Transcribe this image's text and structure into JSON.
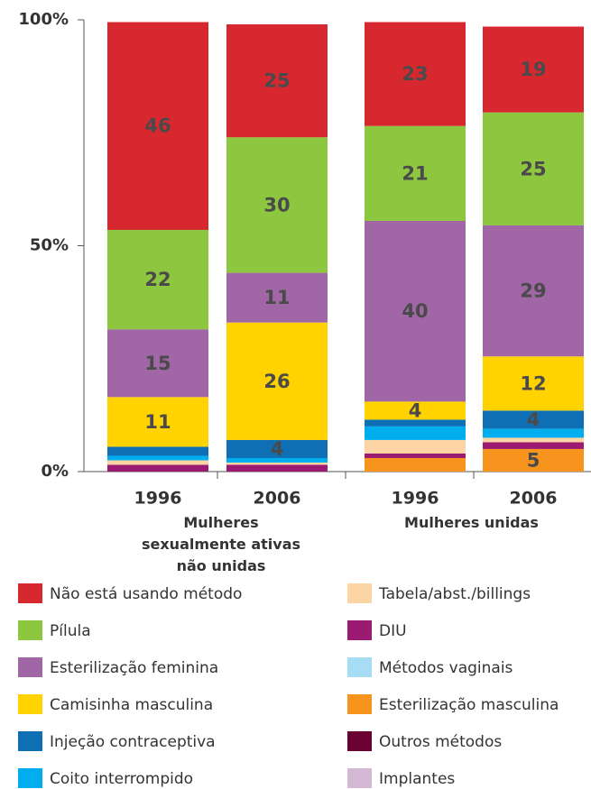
{
  "chart_data": {
    "type": "stacked_bar",
    "categories": [
      "1996",
      "2006",
      "1996",
      "2006"
    ],
    "groups": [
      "Mulheres sexualmente ativas não unidas",
      "Mulheres unidas"
    ],
    "ylim": [
      0,
      100
    ],
    "yticks": [
      {
        "value": 0,
        "label": "0%"
      },
      {
        "value": 50,
        "label": "50%"
      },
      {
        "value": 100,
        "label": "100%"
      }
    ],
    "series": [
      {
        "name": "Não está usando método",
        "color": "#d7282f",
        "values": [
          46,
          25,
          23,
          19
        ]
      },
      {
        "name": "Pílula",
        "color": "#8dc63f",
        "values": [
          22,
          30,
          21,
          25
        ]
      },
      {
        "name": "Esterilização feminina",
        "color": "#a066a6",
        "values": [
          15,
          11,
          40,
          29
        ]
      },
      {
        "name": "Camisinha masculina",
        "color": "#ffd200",
        "values": [
          11,
          26,
          4,
          12
        ]
      },
      {
        "name": "Injeção contraceptiva",
        "color": "#0f6fb5",
        "values": [
          2,
          4,
          1.5,
          4
        ]
      },
      {
        "name": "Coito interrompido",
        "color": "#00aeef",
        "values": [
          1,
          1,
          3,
          2
        ]
      },
      {
        "name": "Tabela/abst./billings",
        "color": "#fdd5a5",
        "values": [
          1,
          0.5,
          3,
          1
        ]
      },
      {
        "name": "DIU",
        "color": "#9b1b73",
        "values": [
          1.5,
          1.5,
          1,
          1.5
        ]
      },
      {
        "name": "Métodos vaginais",
        "color": "#a7dcf5",
        "values": [
          0,
          0,
          0,
          0
        ]
      },
      {
        "name": "Esterilização masculina",
        "color": "#f7941d",
        "values": [
          0,
          0,
          3,
          5
        ]
      },
      {
        "name": "Outros métodos",
        "color": "#6b0032",
        "values": [
          0,
          0,
          0,
          0
        ]
      },
      {
        "name": "Implantes",
        "color": "#d4b8d6",
        "values": [
          0,
          0,
          0,
          0
        ]
      }
    ]
  }
}
